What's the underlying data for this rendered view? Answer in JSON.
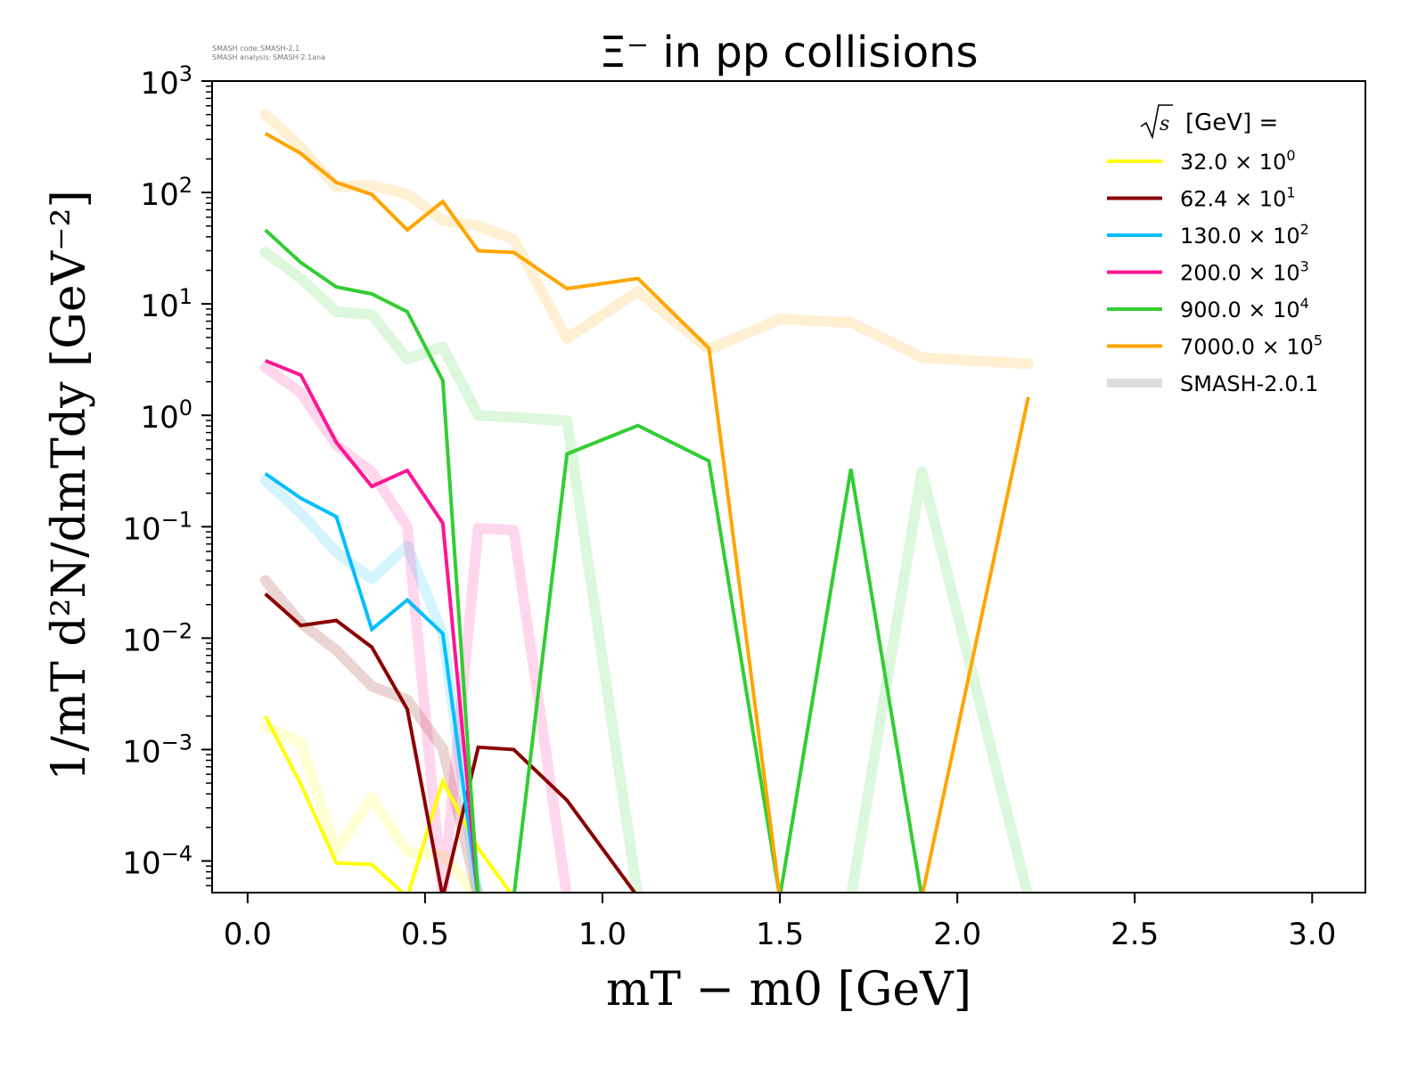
{
  "meta": {
    "code_label": "SMASH code:",
    "code_value": "SMASH-2.1",
    "analysis_label": "SMASH analysis:",
    "analysis_value": "SMASH-2.1ana"
  },
  "chart_data": {
    "type": "line",
    "title": "Ξ⁻ in pp collisions",
    "xlabel": "mT − m0 [GeV]",
    "ylabel": "1/mT d²N/dmTdy [GeV⁻²]",
    "xscale": "linear",
    "yscale": "log",
    "xlim": [
      -0.1,
      3.15
    ],
    "ylim": [
      5.2e-05,
      1000
    ],
    "xticks": [
      0.0,
      0.5,
      1.0,
      1.5,
      2.0,
      2.5,
      3.0
    ],
    "xtick_labels": [
      "0.0",
      "0.5",
      "1.0",
      "1.5",
      "2.0",
      "2.5",
      "3.0"
    ],
    "yticks": [
      1000,
      100,
      10,
      1,
      0.1,
      0.01,
      0.001,
      0.0001
    ],
    "ytick_mantissa": [
      "10",
      "10",
      "10",
      "10",
      "10",
      "10",
      "10",
      "10"
    ],
    "ytick_exponents": [
      "3",
      "2",
      "1",
      "0",
      "−1",
      "−2",
      "−3",
      "−4"
    ],
    "grid": false,
    "legend": {
      "placement": "top-right",
      "title_root": "s",
      "title_rest": "[GeV] =",
      "entries": [
        {
          "mantissa": "32.0 × 10",
          "exp": "0",
          "color": "#ffff00"
        },
        {
          "mantissa": "62.4 × 10",
          "exp": "1",
          "color": "#8b0000"
        },
        {
          "mantissa": "130.0 × 10",
          "exp": "2",
          "color": "#00bfff"
        },
        {
          "mantissa": "200.0 × 10",
          "exp": "3",
          "color": "#ff1493"
        },
        {
          "mantissa": "900.0 × 10",
          "exp": "4",
          "color": "#32cd32"
        },
        {
          "mantissa": "7000.0 × 10",
          "exp": "5",
          "color": "#ffa500"
        },
        {
          "mantissa": "SMASH-2.0.1",
          "exp": "",
          "color": "#dddddd"
        }
      ]
    },
    "x": [
      0.05,
      0.15,
      0.25,
      0.35,
      0.45,
      0.55,
      0.65,
      0.75,
      0.9,
      1.1,
      1.3,
      1.5,
      1.7,
      1.9,
      2.2
    ],
    "series": [
      {
        "name": "32.0",
        "color": "#ffff00",
        "values": [
          0.002,
          0.00049,
          9.6e-05,
          9.3e-05,
          0,
          0.00052,
          0.00013,
          0,
          0,
          0,
          0,
          0,
          0,
          0,
          0
        ],
        "reference": [
          0.0016,
          0.00115,
          0.000123,
          0.00037,
          0.00012,
          0.000113,
          0,
          0,
          0,
          0,
          0,
          0,
          0,
          0,
          0
        ]
      },
      {
        "name": "62.4",
        "color": "#8b0000",
        "values": [
          0.025,
          0.013,
          0.0144,
          0.0083,
          0.0023,
          0,
          0.00105,
          0.001,
          0.00035,
          0,
          0,
          0,
          0,
          0,
          0
        ],
        "reference": [
          0.033,
          0.0136,
          0.0078,
          0.0037,
          0.0028,
          0.00102,
          0,
          0,
          0,
          0,
          0,
          0,
          0,
          0,
          0
        ]
      },
      {
        "name": "130.0",
        "color": "#00bfff",
        "values": [
          0.3,
          0.18,
          0.123,
          0.012,
          0.022,
          0.011,
          0,
          0,
          0,
          0,
          0,
          0,
          0,
          0,
          0
        ],
        "reference": [
          0.26,
          0.132,
          0.059,
          0.034,
          0.067,
          0.011,
          0,
          0,
          0,
          0,
          0,
          0,
          0,
          0,
          0
        ]
      },
      {
        "name": "200.0",
        "color": "#ff1493",
        "values": [
          3.1,
          2.3,
          0.57,
          0.23,
          0.32,
          0.108,
          0,
          0,
          0,
          0,
          0,
          0,
          0,
          0,
          0
        ],
        "reference": [
          2.7,
          1.6,
          0.54,
          0.31,
          0.1,
          0,
          0.097,
          0.093,
          0,
          0,
          0,
          0,
          0,
          0,
          0
        ]
      },
      {
        "name": "900.0",
        "color": "#32cd32",
        "values": [
          46,
          23.5,
          14.2,
          12.3,
          8.5,
          2.05,
          0,
          0,
          0.45,
          0.81,
          0.39,
          0,
          0.33,
          0,
          0
        ],
        "reference": [
          29,
          17,
          8.5,
          8.0,
          3.2,
          4.1,
          1.0,
          0.96,
          0.89,
          0,
          0,
          0,
          0,
          0.31,
          0
        ]
      },
      {
        "name": "7000.0",
        "color": "#ffa500",
        "values": [
          339,
          224,
          123,
          96,
          46,
          83,
          30,
          29,
          13.7,
          16.9,
          4.0,
          0,
          0,
          0,
          1.46
        ],
        "reference": [
          505,
          255,
          112,
          116,
          97,
          56,
          50,
          38,
          4.9,
          13,
          3.9,
          7.3,
          6.8,
          3.3,
          2.9
        ]
      }
    ]
  }
}
